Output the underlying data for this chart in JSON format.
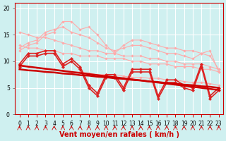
{
  "title": "",
  "xlabel": "Vent moyen/en rafales ( km/h )",
  "background_color": "#cff0f0",
  "grid_color": "#ffffff",
  "x_ticks": [
    0,
    1,
    2,
    3,
    4,
    5,
    6,
    7,
    8,
    9,
    10,
    11,
    12,
    13,
    14,
    15,
    16,
    17,
    18,
    19,
    20,
    21,
    22,
    23
  ],
  "ylim": [
    0,
    21
  ],
  "xlim": [
    -0.5,
    23.5
  ],
  "yticks": [
    0,
    5,
    10,
    15,
    20
  ],
  "lines": [
    {
      "color": "#ffaaaa",
      "lw": 0.8,
      "marker": "D",
      "markersize": 1.8,
      "y": [
        12.0,
        13.0,
        13.5,
        15.0,
        15.5,
        17.5,
        17.5,
        16.0,
        16.5,
        15.0,
        13.0,
        11.5,
        13.0,
        14.0,
        14.0,
        13.5,
        13.0,
        12.5,
        12.5,
        12.0,
        12.0,
        11.5,
        12.0,
        8.0
      ]
    },
    {
      "color": "#ffaaaa",
      "lw": 0.8,
      "marker": "D",
      "markersize": 1.8,
      "y": [
        12.5,
        13.5,
        14.0,
        15.5,
        16.0,
        16.5,
        15.5,
        15.0,
        14.5,
        13.5,
        12.5,
        12.0,
        12.5,
        13.0,
        13.0,
        12.5,
        12.0,
        11.5,
        11.5,
        11.0,
        10.5,
        11.5,
        11.0,
        8.5
      ]
    },
    {
      "color": "#ffaaaa",
      "lw": 0.8,
      "marker": "D",
      "markersize": 1.8,
      "y": [
        15.5,
        15.0,
        14.5,
        14.5,
        14.0,
        13.5,
        13.0,
        12.5,
        12.0,
        12.0,
        11.5,
        11.5,
        11.0,
        11.0,
        11.0,
        10.5,
        10.5,
        10.0,
        10.0,
        9.5,
        9.5,
        9.5,
        9.0,
        8.5
      ]
    },
    {
      "color": "#ffaaaa",
      "lw": 0.8,
      "marker": "D",
      "markersize": 1.8,
      "y": [
        13.0,
        12.5,
        12.5,
        12.0,
        12.0,
        11.5,
        11.5,
        11.0,
        11.0,
        11.0,
        10.5,
        10.5,
        10.5,
        10.0,
        10.0,
        9.5,
        9.5,
        9.5,
        9.0,
        9.0,
        9.0,
        8.5,
        8.5,
        8.0
      ]
    },
    {
      "color": "#ffaaaa",
      "lw": 0.8,
      "marker": "D",
      "markersize": 1.8,
      "y": [
        9.5,
        9.0,
        8.8,
        8.5,
        8.5,
        8.3,
        8.0,
        8.0,
        7.8,
        7.5,
        7.5,
        7.5,
        7.2,
        7.0,
        7.0,
        6.8,
        6.8,
        6.5,
        6.5,
        6.2,
        6.0,
        6.0,
        5.8,
        5.5
      ]
    },
    {
      "color": "#dd2222",
      "lw": 1.2,
      "marker": "D",
      "markersize": 2.2,
      "y": [
        9.5,
        11.5,
        11.5,
        12.0,
        12.0,
        9.5,
        10.5,
        9.0,
        5.5,
        4.0,
        7.5,
        7.5,
        5.0,
        8.5,
        8.5,
        8.5,
        3.5,
        6.5,
        6.5,
        5.5,
        5.0,
        9.5,
        3.5,
        5.0
      ]
    },
    {
      "color": "#dd2222",
      "lw": 1.2,
      "marker": "D",
      "markersize": 2.2,
      "y": [
        9.0,
        11.0,
        11.0,
        11.5,
        11.5,
        9.0,
        10.0,
        8.5,
        5.0,
        3.5,
        7.0,
        7.0,
        4.5,
        8.0,
        8.0,
        8.0,
        3.0,
        6.0,
        6.0,
        5.0,
        4.5,
        9.0,
        3.0,
        4.5
      ]
    },
    {
      "color": "#cc0000",
      "lw": 1.8,
      "marker": null,
      "markersize": 0,
      "y": [
        9.2,
        9.0,
        8.8,
        8.6,
        8.4,
        8.2,
        8.0,
        7.8,
        7.6,
        7.4,
        7.2,
        7.0,
        6.8,
        6.6,
        6.4,
        6.2,
        6.0,
        5.8,
        5.6,
        5.4,
        5.2,
        5.0,
        4.8,
        4.6
      ]
    },
    {
      "color": "#cc0000",
      "lw": 1.8,
      "marker": null,
      "markersize": 0,
      "y": [
        8.5,
        8.3,
        8.2,
        8.0,
        7.9,
        7.7,
        7.6,
        7.4,
        7.3,
        7.1,
        7.0,
        6.8,
        6.7,
        6.5,
        6.4,
        6.2,
        6.1,
        5.9,
        5.8,
        5.6,
        5.5,
        5.3,
        5.2,
        5.0
      ]
    }
  ],
  "tick_label_fontsize": 5.5,
  "xlabel_fontsize": 7,
  "xlabel_color": "#cc0000"
}
